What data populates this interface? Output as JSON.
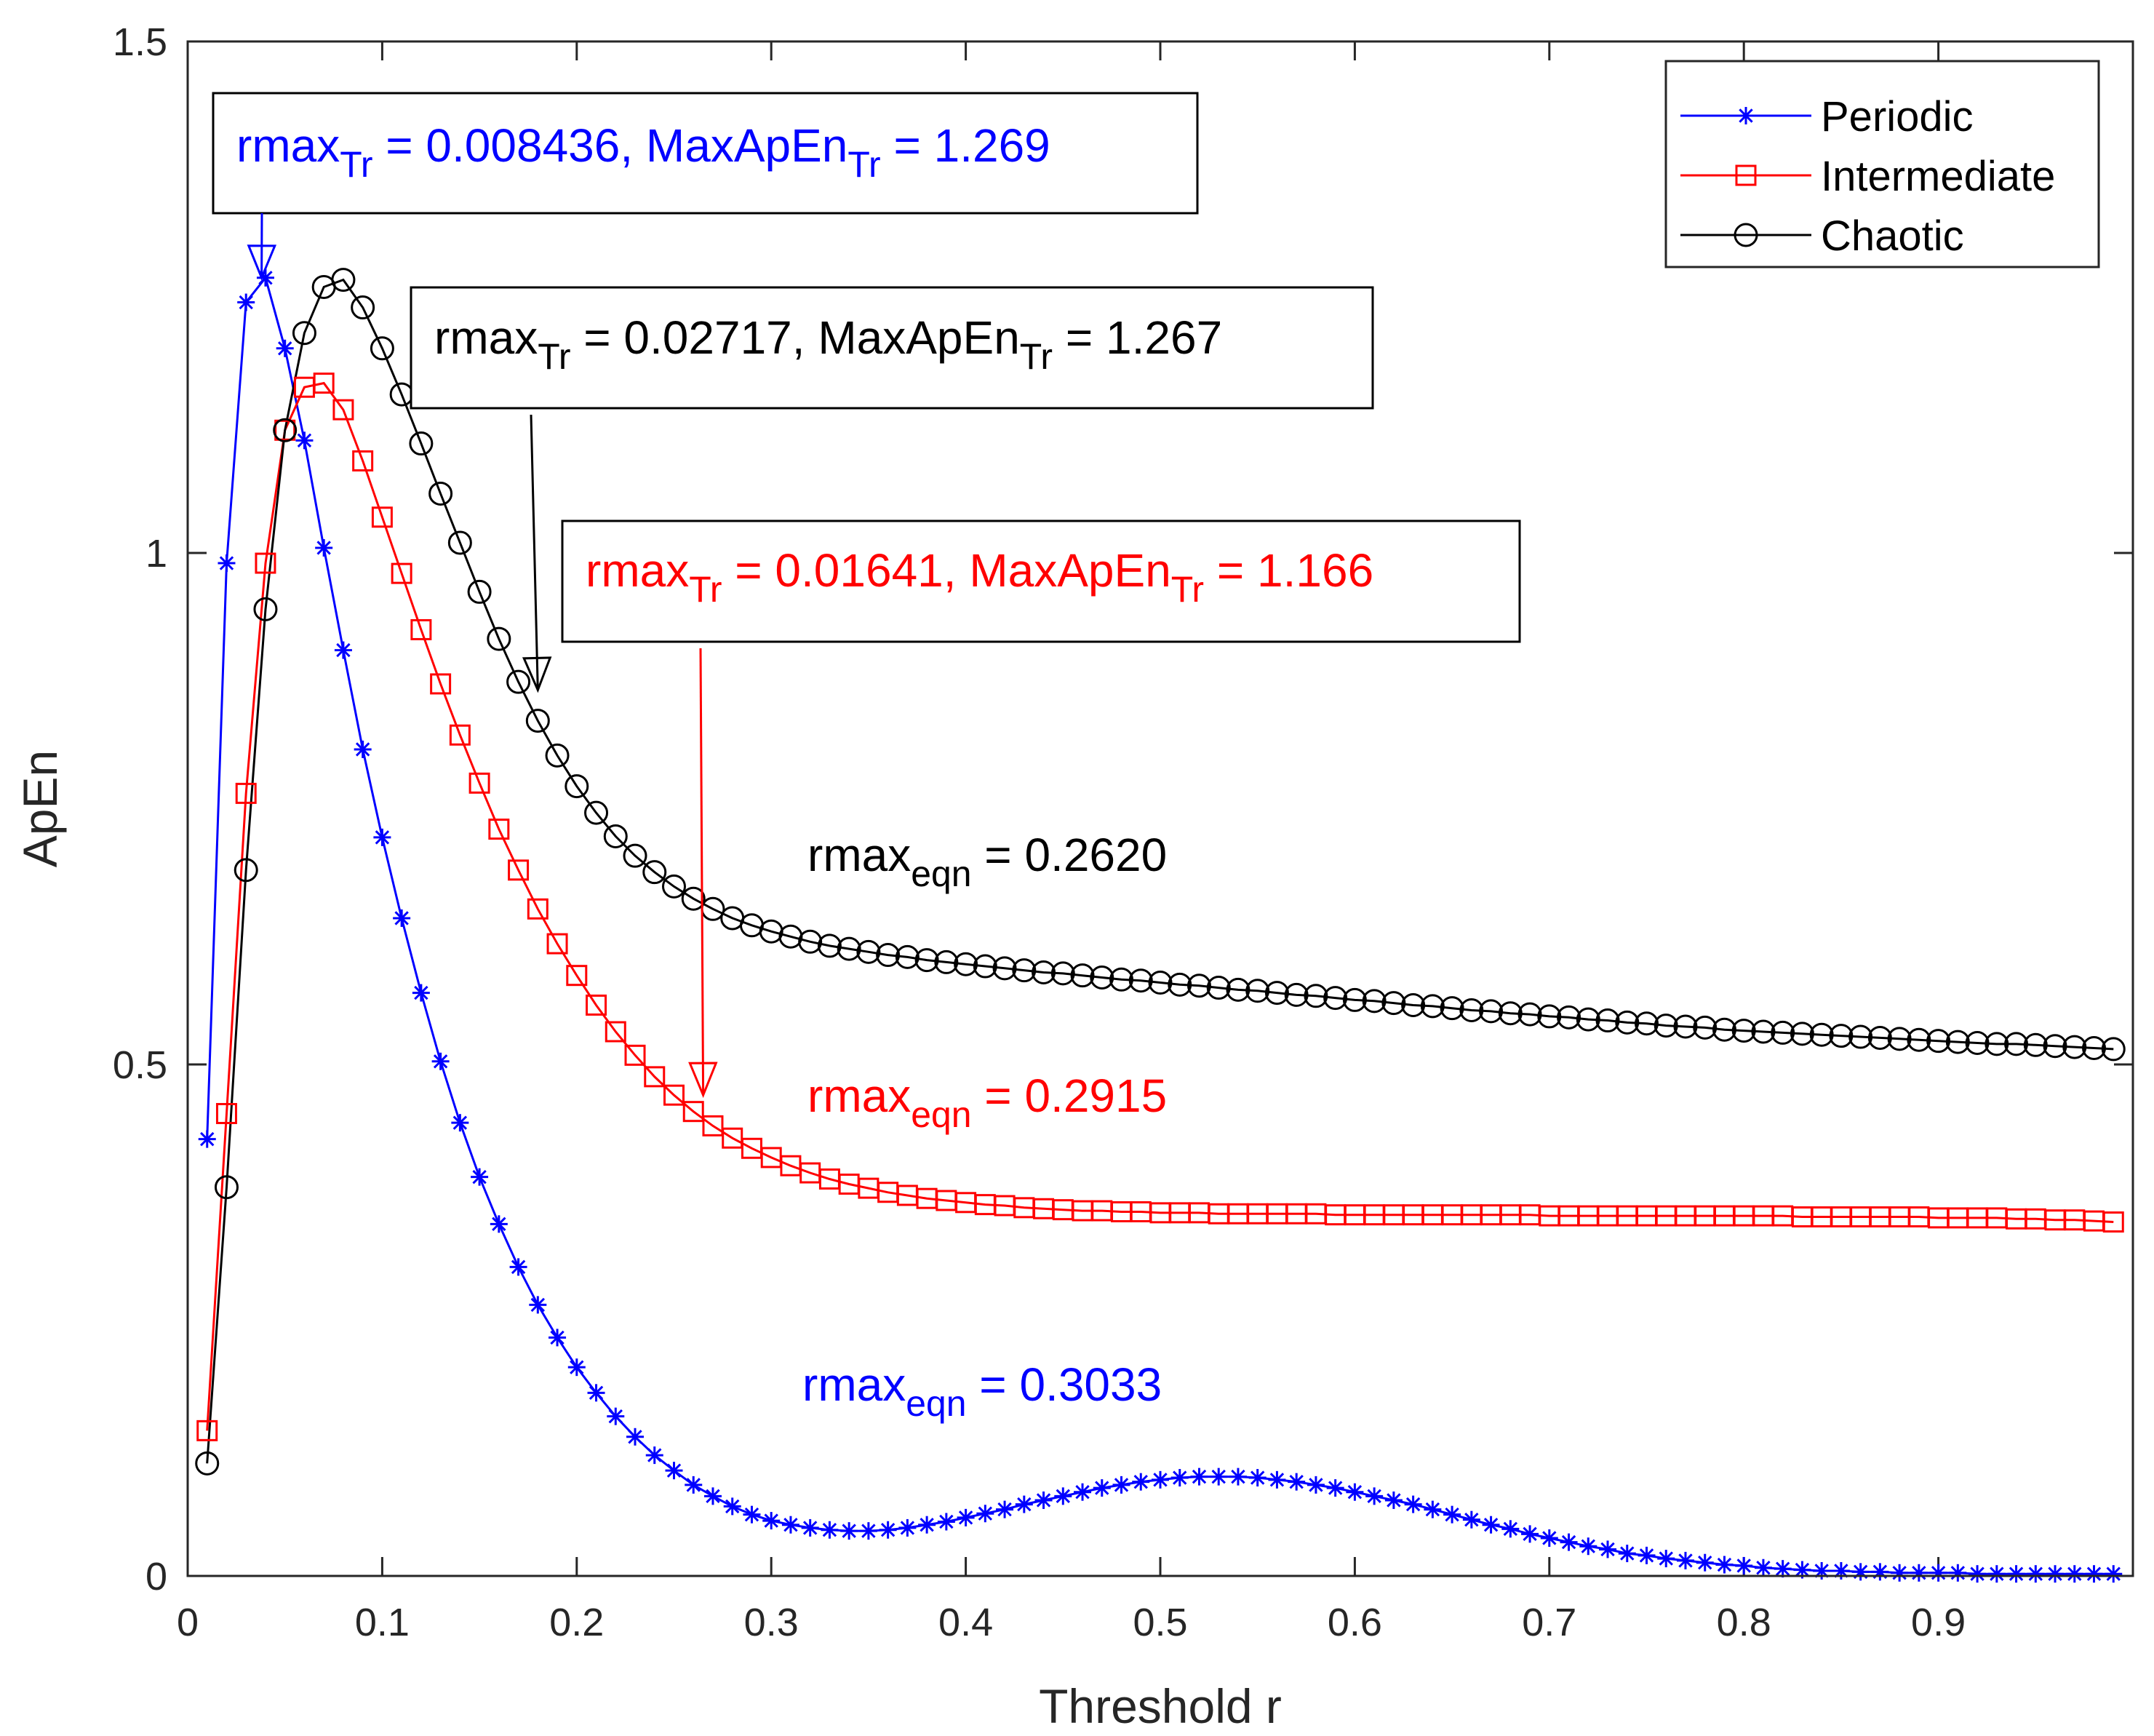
{
  "chart_data": {
    "type": "line",
    "xlabel": "Threshold r",
    "ylabel": "ApEn",
    "xlim": [
      0,
      1.0
    ],
    "ylim": [
      0,
      1.5
    ],
    "xticks": [
      0,
      0.1,
      0.2,
      0.3,
      0.4,
      0.5,
      0.6,
      0.7,
      0.8,
      0.9
    ],
    "xtick_labels": [
      "0",
      "0.1",
      "0.2",
      "0.3",
      "0.4",
      "0.5",
      "0.6",
      "0.7",
      "0.8",
      "0.9"
    ],
    "yticks": [
      0,
      0.5,
      1,
      1.5
    ],
    "ytick_labels": [
      "0",
      "0.5",
      "1",
      "1.5"
    ],
    "legend_position": "top-right",
    "x": [
      0.01,
      0.02,
      0.03,
      0.04,
      0.05,
      0.06,
      0.07,
      0.08,
      0.09,
      0.1,
      0.11,
      0.12,
      0.13,
      0.14,
      0.15,
      0.16,
      0.17,
      0.18,
      0.19,
      0.2,
      0.21,
      0.22,
      0.23,
      0.24,
      0.25,
      0.26,
      0.27,
      0.28,
      0.29,
      0.3,
      0.31,
      0.32,
      0.33,
      0.34,
      0.35,
      0.36,
      0.37,
      0.38,
      0.39,
      0.4,
      0.41,
      0.42,
      0.43,
      0.44,
      0.45,
      0.46,
      0.47,
      0.48,
      0.49,
      0.5,
      0.51,
      0.52,
      0.53,
      0.54,
      0.55,
      0.56,
      0.57,
      0.58,
      0.59,
      0.6,
      0.61,
      0.62,
      0.63,
      0.64,
      0.65,
      0.66,
      0.67,
      0.68,
      0.69,
      0.7,
      0.71,
      0.72,
      0.73,
      0.74,
      0.75,
      0.76,
      0.77,
      0.78,
      0.79,
      0.8,
      0.81,
      0.82,
      0.83,
      0.84,
      0.85,
      0.86,
      0.87,
      0.88,
      0.89,
      0.9,
      0.91,
      0.92,
      0.93,
      0.94,
      0.95,
      0.96,
      0.97,
      0.98,
      0.99
    ],
    "series": [
      {
        "name": "Periodic",
        "color": "#0000ff",
        "marker": "asterisk",
        "values": [
          0.427,
          0.99,
          1.245,
          1.269,
          1.2,
          1.11,
          1.005,
          0.905,
          0.808,
          0.722,
          0.643,
          0.57,
          0.503,
          0.443,
          0.39,
          0.344,
          0.302,
          0.265,
          0.233,
          0.204,
          0.179,
          0.156,
          0.136,
          0.118,
          0.103,
          0.089,
          0.078,
          0.068,
          0.06,
          0.054,
          0.05,
          0.047,
          0.045,
          0.044,
          0.044,
          0.045,
          0.047,
          0.05,
          0.053,
          0.057,
          0.061,
          0.065,
          0.07,
          0.074,
          0.078,
          0.082,
          0.086,
          0.089,
          0.092,
          0.094,
          0.096,
          0.097,
          0.097,
          0.097,
          0.096,
          0.094,
          0.092,
          0.089,
          0.086,
          0.082,
          0.078,
          0.074,
          0.07,
          0.065,
          0.06,
          0.055,
          0.05,
          0.046,
          0.041,
          0.037,
          0.033,
          0.029,
          0.026,
          0.022,
          0.02,
          0.017,
          0.015,
          0.013,
          0.011,
          0.01,
          0.008,
          0.007,
          0.006,
          0.005,
          0.005,
          0.004,
          0.004,
          0.003,
          0.003,
          0.003,
          0.003,
          0.002,
          0.002,
          0.002,
          0.002,
          0.002,
          0.002,
          0.002,
          0.002
        ]
      },
      {
        "name": "Intermediate",
        "color": "#ff0000",
        "marker": "square",
        "values": [
          0.142,
          0.452,
          0.765,
          0.99,
          1.12,
          1.162,
          1.166,
          1.14,
          1.09,
          1.035,
          0.98,
          0.925,
          0.872,
          0.822,
          0.775,
          0.73,
          0.69,
          0.652,
          0.618,
          0.587,
          0.558,
          0.532,
          0.509,
          0.488,
          0.47,
          0.454,
          0.44,
          0.428,
          0.418,
          0.409,
          0.401,
          0.394,
          0.388,
          0.383,
          0.379,
          0.375,
          0.372,
          0.369,
          0.367,
          0.365,
          0.363,
          0.362,
          0.36,
          0.359,
          0.358,
          0.357,
          0.357,
          0.356,
          0.356,
          0.355,
          0.355,
          0.355,
          0.354,
          0.354,
          0.354,
          0.354,
          0.354,
          0.354,
          0.353,
          0.353,
          0.353,
          0.353,
          0.353,
          0.353,
          0.353,
          0.353,
          0.353,
          0.353,
          0.353,
          0.352,
          0.352,
          0.352,
          0.352,
          0.352,
          0.352,
          0.352,
          0.352,
          0.352,
          0.352,
          0.352,
          0.352,
          0.352,
          0.351,
          0.351,
          0.351,
          0.351,
          0.351,
          0.351,
          0.351,
          0.35,
          0.35,
          0.35,
          0.35,
          0.349,
          0.349,
          0.348,
          0.348,
          0.347,
          0.346
        ]
      },
      {
        "name": "Chaotic",
        "color": "#000000",
        "marker": "circle",
        "values": [
          0.11,
          0.38,
          0.69,
          0.945,
          1.12,
          1.215,
          1.26,
          1.267,
          1.24,
          1.2,
          1.155,
          1.107,
          1.058,
          1.01,
          0.962,
          0.916,
          0.874,
          0.836,
          0.802,
          0.772,
          0.746,
          0.723,
          0.704,
          0.688,
          0.674,
          0.662,
          0.652,
          0.643,
          0.636,
          0.63,
          0.625,
          0.62,
          0.616,
          0.613,
          0.61,
          0.607,
          0.605,
          0.602,
          0.6,
          0.598,
          0.596,
          0.594,
          0.592,
          0.59,
          0.589,
          0.587,
          0.585,
          0.583,
          0.582,
          0.58,
          0.578,
          0.577,
          0.575,
          0.573,
          0.572,
          0.57,
          0.568,
          0.567,
          0.565,
          0.563,
          0.562,
          0.56,
          0.558,
          0.557,
          0.555,
          0.553,
          0.552,
          0.55,
          0.549,
          0.547,
          0.546,
          0.544,
          0.543,
          0.541,
          0.54,
          0.538,
          0.537,
          0.536,
          0.534,
          0.533,
          0.532,
          0.531,
          0.53,
          0.529,
          0.528,
          0.527,
          0.526,
          0.525,
          0.524,
          0.523,
          0.522,
          0.521,
          0.52,
          0.52,
          0.519,
          0.518,
          0.517,
          0.516,
          0.515
        ]
      }
    ],
    "annotations": [
      {
        "id": "periodic",
        "color": "#0000ff",
        "box_label": {
          "prefix": "rmax",
          "sub": "Tr",
          "mid": " = 0.008436, MaxApEn",
          "sub2": "Tr",
          "suffix": " = 1.269"
        },
        "arrow_to": {
          "x": 0.038,
          "y": 1.269
        },
        "eqn_label": {
          "prefix": "rmax",
          "sub": "eqn",
          "suffix": " = 0.3033"
        }
      },
      {
        "id": "chaotic",
        "color": "#000000",
        "box_label": {
          "prefix": "rmax",
          "sub": "Tr",
          "mid": " = 0.02717, MaxApEn",
          "sub2": "Tr",
          "suffix": " = 1.267"
        },
        "arrow_to": {
          "x": 0.18,
          "y": 0.866
        },
        "eqn_label": {
          "prefix": "rmax",
          "sub": "eqn",
          "suffix": " = 0.2620"
        }
      },
      {
        "id": "intermediate",
        "color": "#ff0000",
        "box_label": {
          "prefix": "rmax",
          "sub": "Tr",
          "mid": " = 0.01641, MaxApEn",
          "sub2": "Tr",
          "suffix": " = 1.166"
        },
        "arrow_to": {
          "x": 0.265,
          "y": 0.47
        },
        "eqn_label": {
          "prefix": "rmax",
          "sub": "eqn",
          "suffix": " = 0.2915"
        }
      }
    ]
  }
}
